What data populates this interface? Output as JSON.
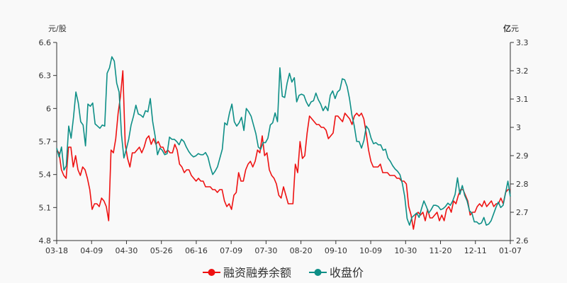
{
  "chart_data": {
    "type": "line",
    "y_left": {
      "unit": "元/股",
      "ticks": [
        "4.8",
        "5.1",
        "5.4",
        "5.7",
        "6",
        "6.3",
        "6.6"
      ],
      "range": [
        4.8,
        6.6
      ]
    },
    "y_right": {
      "unit_bold": "亿",
      "unit": "元",
      "ticks": [
        "2.6",
        "2.7",
        "2.8",
        "2.9",
        "3",
        "3.1",
        "3.2",
        "3.3"
      ],
      "range": [
        2.6,
        3.3
      ]
    },
    "x_ticks": [
      "03-18",
      "04-09",
      "04-30",
      "05-26",
      "06-16",
      "07-09",
      "07-30",
      "08-20",
      "09-10",
      "10-09",
      "10-30",
      "11-20",
      "12-11",
      "01-07"
    ],
    "series": [
      {
        "name": "融资融券余额",
        "axis": "right",
        "color": "#ee1111",
        "values": [
          2.92,
          2.91,
          2.85,
          2.83,
          2.82,
          2.93,
          2.93,
          2.86,
          2.9,
          2.85,
          2.83,
          2.86,
          2.85,
          2.82,
          2.78,
          2.71,
          2.73,
          2.73,
          2.72,
          2.75,
          2.74,
          2.72,
          2.67,
          2.92,
          2.91,
          2.96,
          3.05,
          3.11,
          3.2,
          2.94,
          2.89,
          2.86,
          2.91,
          2.91,
          2.92,
          2.93,
          2.91,
          2.93,
          2.96,
          2.97,
          2.94,
          2.96,
          2.94,
          2.95,
          2.93,
          2.93,
          2.91,
          2.92,
          2.91,
          2.91,
          2.94,
          2.92,
          2.87,
          2.86,
          2.84,
          2.85,
          2.85,
          2.83,
          2.82,
          2.81,
          2.82,
          2.81,
          2.81,
          2.79,
          2.79,
          2.79,
          2.78,
          2.78,
          2.77,
          2.78,
          2.78,
          2.74,
          2.72,
          2.73,
          2.71,
          2.76,
          2.77,
          2.84,
          2.81,
          2.81,
          2.85,
          2.87,
          2.88,
          2.86,
          2.88,
          2.92,
          2.91,
          2.97,
          2.9,
          2.91,
          2.85,
          2.83,
          2.82,
          2.8,
          2.76,
          2.75,
          2.79,
          2.76,
          2.73,
          2.73,
          2.73,
          2.87,
          2.84,
          2.95,
          2.89,
          2.9,
          2.98,
          3.04,
          3.03,
          3.02,
          3.01,
          3.01,
          3.0,
          3.0,
          2.99,
          2.96,
          2.97,
          2.98,
          3.04,
          3.04,
          3.03,
          3.02,
          3.05,
          3.04,
          3.03,
          3.01,
          3.04,
          3.05,
          3.04,
          3.05,
          3.03,
          2.98,
          2.92,
          2.88,
          2.86,
          2.86,
          2.86,
          2.87,
          2.84,
          2.84,
          2.84,
          2.83,
          2.83,
          2.83,
          2.82,
          2.82,
          2.81,
          2.81,
          2.8,
          2.72,
          2.69,
          2.64,
          2.69,
          2.7,
          2.69,
          2.7,
          2.67,
          2.71,
          2.68,
          2.68,
          2.69,
          2.7,
          2.67,
          2.69,
          2.67,
          2.71,
          2.72,
          2.7,
          2.74,
          2.73,
          2.76,
          2.78,
          2.78,
          2.76,
          2.74,
          2.69,
          2.7,
          2.7,
          2.72,
          2.73,
          2.72,
          2.74,
          2.72,
          2.73,
          2.74,
          2.72,
          2.73,
          2.73,
          2.75,
          2.73,
          2.77,
          2.78,
          2.78
        ]
      },
      {
        "name": "收盘价",
        "axis": "left",
        "color": "#0e8f87",
        "values": [
          5.64,
          5.56,
          5.65,
          5.44,
          5.48,
          5.84,
          5.73,
          5.92,
          6.15,
          6.05,
          5.88,
          5.85,
          5.66,
          6.04,
          6.02,
          6.05,
          5.86,
          5.84,
          5.82,
          5.85,
          5.84,
          6.32,
          6.37,
          6.47,
          6.43,
          6.23,
          6.15,
          5.76,
          5.55,
          5.63,
          5.72,
          5.85,
          5.93,
          6.03,
          5.95,
          5.94,
          5.92,
          5.98,
          5.97,
          6.09,
          5.88,
          5.75,
          5.58,
          5.64,
          5.62,
          5.58,
          5.59,
          5.74,
          5.72,
          5.72,
          5.7,
          5.67,
          5.72,
          5.7,
          5.65,
          5.61,
          5.58,
          5.56,
          5.57,
          5.59,
          5.58,
          5.58,
          5.6,
          5.56,
          5.47,
          5.4,
          5.43,
          5.47,
          5.55,
          5.63,
          5.87,
          5.85,
          5.96,
          6.04,
          5.88,
          5.84,
          5.87,
          5.92,
          5.8,
          6.0,
          5.97,
          5.93,
          5.85,
          5.77,
          5.65,
          5.63,
          5.69,
          5.69,
          5.73,
          5.85,
          5.87,
          5.96,
          5.88,
          6.37,
          6.11,
          6.1,
          6.23,
          6.32,
          6.24,
          6.28,
          6.06,
          6.12,
          6.13,
          6.12,
          6.06,
          6.02,
          6.06,
          6.07,
          6.14,
          6.08,
          6.04,
          5.98,
          6.02,
          5.98,
          6.12,
          6.16,
          6.09,
          6.15,
          6.17,
          6.27,
          6.26,
          6.2,
          6.09,
          5.94,
          5.84,
          5.7,
          5.7,
          5.64,
          5.71,
          5.84,
          5.81,
          5.73,
          5.68,
          5.69,
          5.67,
          5.67,
          5.62,
          5.63,
          5.55,
          5.52,
          5.48,
          5.45,
          5.43,
          5.4,
          5.32,
          5.2,
          5.0,
          4.94,
          5.01,
          5.03,
          5.05,
          5.01,
          5.09,
          5.16,
          5.11,
          5.05,
          5.08,
          5.12,
          5.12,
          5.11,
          5.08,
          5.09,
          5.11,
          5.14,
          5.12,
          5.16,
          5.22,
          5.37,
          5.22,
          5.3,
          5.21,
          5.16,
          5.07,
          5.05,
          4.97,
          4.97,
          4.95,
          4.96,
          5.01,
          4.94,
          4.95,
          4.98,
          5.04,
          5.1,
          5.15,
          5.1,
          5.12,
          5.23,
          5.34,
          5.2
        ]
      }
    ],
    "legend_position": "bottom-center",
    "grid": false
  }
}
